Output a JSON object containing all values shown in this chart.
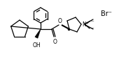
{
  "background_color": "#ffffff",
  "figsize": [
    1.7,
    0.88
  ],
  "dpi": 100,
  "br_label": "Br⁻",
  "n_plus_label": "N⁺",
  "o_label": "O",
  "oh_label": "OH",
  "lw": 0.9
}
